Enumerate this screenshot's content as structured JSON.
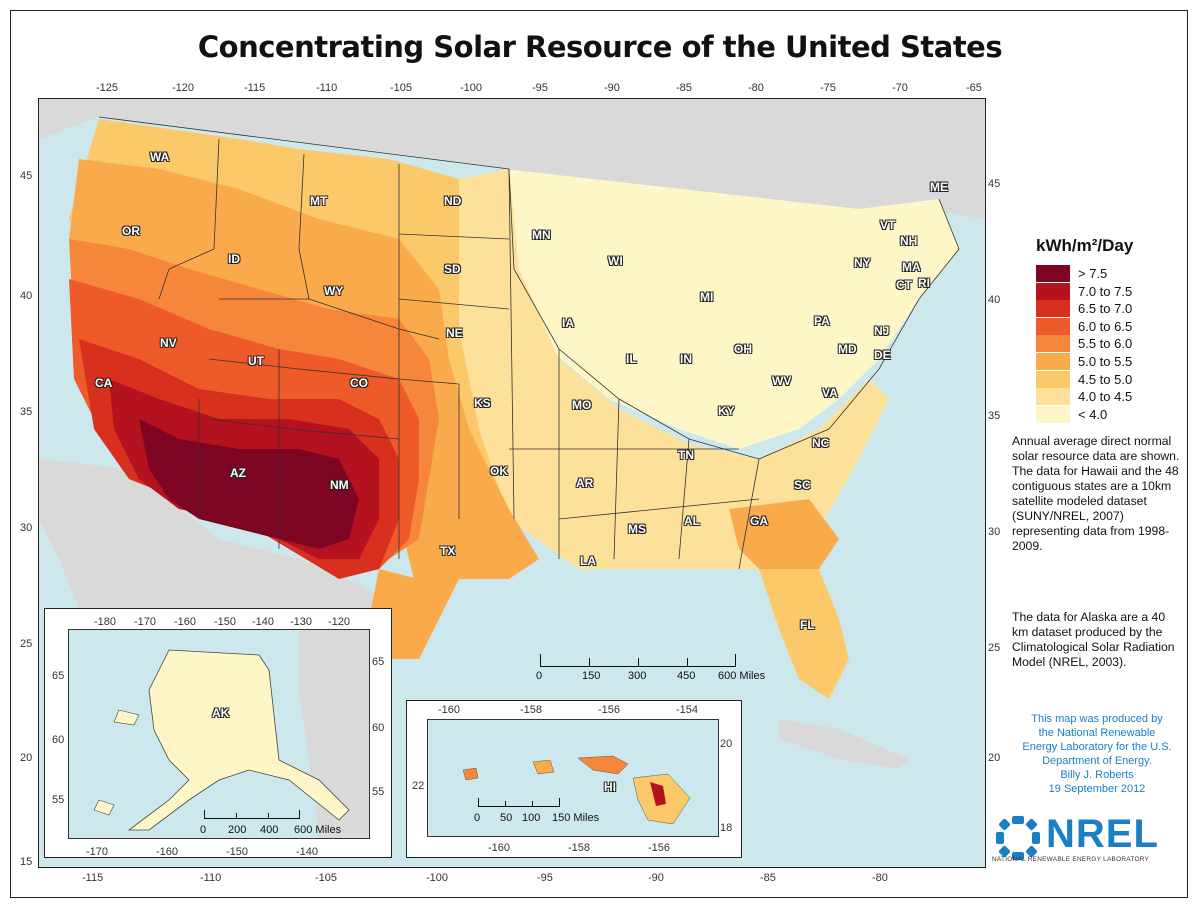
{
  "title": "Concentrating Solar Resource of the United States",
  "colors": {
    "ocean": "#cde8ec",
    "land_outside": "#d9d9d9",
    "r_gt75": "#7e0423",
    "r_70_75": "#b3121e",
    "r_65_70": "#d7301f",
    "r_60_65": "#ee5a2a",
    "r_55_60": "#f6863a",
    "r_50_55": "#f9ab4c",
    "r_45_50": "#fbc96a",
    "r_40_45": "#fde19b",
    "r_lt40": "#fff6c8",
    "credit_blue": "#1b7fc4"
  },
  "map": {
    "top_lon_ticks": [
      "-125",
      "-120",
      "-115",
      "-110",
      "-105",
      "-100",
      "-95",
      "-90",
      "-85",
      "-80",
      "-75",
      "-70",
      "-65"
    ],
    "bottom_lon_ticks": [
      "-115",
      "-110",
      "-105",
      "-100",
      "-95",
      "-90",
      "-85",
      "-80"
    ],
    "left_lat_ticks": [
      "45",
      "40",
      "35",
      "30",
      "25",
      "20",
      "15"
    ],
    "right_lat_ticks": [
      "45",
      "40",
      "35",
      "30",
      "25",
      "20"
    ],
    "state_labels": [
      "WA",
      "OR",
      "CA",
      "NV",
      "ID",
      "MT",
      "WY",
      "UT",
      "AZ",
      "CO",
      "NM",
      "ND",
      "SD",
      "NE",
      "KS",
      "OK",
      "TX",
      "MN",
      "IA",
      "MO",
      "AR",
      "LA",
      "WI",
      "IL",
      "MI",
      "IN",
      "OH",
      "KY",
      "TN",
      "MS",
      "AL",
      "GA",
      "FL",
      "SC",
      "NC",
      "VA",
      "WV",
      "PA",
      "NY",
      "ME",
      "VT",
      "NH",
      "MA",
      "CT",
      "RI",
      "NJ",
      "DE",
      "MD"
    ],
    "scale_labels": [
      "0",
      "150",
      "300",
      "450",
      "600 Miles"
    ]
  },
  "legend": {
    "title": "kWh/m²/Day",
    "items": [
      {
        "label": "> 7.5"
      },
      {
        "label": "7.0 to 7.5"
      },
      {
        "label": "6.5 to 7.0"
      },
      {
        "label": "6.0 to 6.5"
      },
      {
        "label": "5.5 to 6.0"
      },
      {
        "label": "5.0 to 5.5"
      },
      {
        "label": "4.5 to 5.0"
      },
      {
        "label": "4.0 to 4.5"
      },
      {
        "label": "< 4.0"
      }
    ]
  },
  "description": {
    "paragraph1": "Annual average direct normal solar resource data are shown.  The data for Hawaii and the 48 contiguous states are a 10km satellite modeled dataset (SUNY/NREL, 2007) representing data from 1998-2009.",
    "paragraph2": "The data for Alaska are a 40 km dataset produced by the Climatological Solar Radiation Model (NREL, 2003)."
  },
  "credit": {
    "line1": "This map was produced by",
    "line2": "the National Renewable",
    "line3": "Energy Laboratory for the U.S.",
    "line4": "Department of Energy.",
    "line5": "Billy J. Roberts",
    "line6": "19 September 2012"
  },
  "alaska": {
    "label": "AK",
    "top_ticks": [
      "-180",
      "-170",
      "-160",
      "-150",
      "-140",
      "-130",
      "-120"
    ],
    "bottom_ticks": [
      "-170",
      "-160",
      "-150",
      "-140"
    ],
    "left_ticks": [
      "65",
      "60",
      "55"
    ],
    "right_ticks": [
      "65",
      "60",
      "55"
    ],
    "scale_labels": [
      "0",
      "200",
      "400",
      "600 Miles"
    ]
  },
  "hawaii": {
    "label": "HI",
    "top_ticks": [
      "-160",
      "-158",
      "-156",
      "-154"
    ],
    "bottom_ticks": [
      "-160",
      "-158",
      "-156"
    ],
    "left_ticks": [
      "22"
    ],
    "right_ticks": [
      "20",
      "18"
    ],
    "scale_labels": [
      "0",
      "50",
      "100",
      "150 Miles"
    ]
  },
  "logo": {
    "wordmark": "NREL",
    "subtitle": "NATIONAL RENEWABLE ENERGY LABORATORY"
  }
}
